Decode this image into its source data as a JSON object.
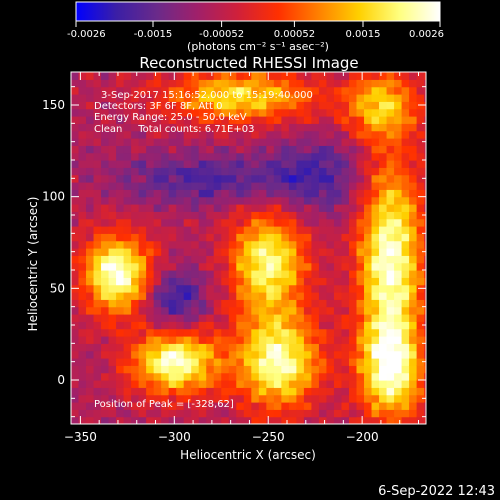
{
  "colorbar": {
    "ticks": [
      "-0.0026",
      "-0.0015",
      "-0.00052",
      "0.00052",
      "0.0015",
      "0.0026"
    ],
    "tick_values": [
      -0.0026,
      -0.0015,
      -0.00052,
      0.00052,
      0.0015,
      0.0026
    ],
    "range": [
      -0.0026,
      0.0026
    ],
    "units_label": "(photons cm⁻² s⁻¹ asec⁻²)",
    "colormap": [
      "#0000ff",
      "#3b1fa6",
      "#6a2a8a",
      "#a0206a",
      "#d0203a",
      "#ff3000",
      "#ff8000",
      "#ffd000",
      "#ffff80",
      "#ffffff"
    ]
  },
  "chart_data": {
    "type": "heatmap",
    "title": "Reconstructed RHESSI Image",
    "xlabel": "Heliocentric X (arcsec)",
    "ylabel": "Heliocentric Y (arcsec)",
    "xlim": [
      -355,
      -166
    ],
    "ylim": [
      -24,
      168
    ],
    "xticks": [
      -350,
      -300,
      -250,
      -200
    ],
    "xtick_labels": [
      "−350",
      "−300",
      "−250",
      "−200"
    ],
    "yticks": [
      0,
      50,
      100,
      150
    ],
    "ytick_labels": [
      "0",
      "50",
      "100",
      "150"
    ],
    "annotations": [
      "3-Sep-2017 15:16:52.000 to 15:19:40.000",
      "Detectors: 3F 6F 8F, Att 0",
      "Energy Range: 25.0 - 50.0 keV",
      "Clean     Total counts: 6.71E+03"
    ],
    "peak_label": "Position of Peak = [-328,62]",
    "peak": [
      -328,
      62
    ],
    "sources": [
      {
        "x": -330,
        "y": 58,
        "amp": 1.0,
        "sx": 13,
        "sy": 15
      },
      {
        "x": -300,
        "y": 10,
        "amp": 0.95,
        "sx": 16,
        "sy": 12
      },
      {
        "x": -250,
        "y": 65,
        "amp": 0.85,
        "sx": 14,
        "sy": 20
      },
      {
        "x": -245,
        "y": 10,
        "amp": 0.9,
        "sx": 16,
        "sy": 18
      },
      {
        "x": -185,
        "y": 65,
        "amp": 0.95,
        "sx": 12,
        "sy": 40
      },
      {
        "x": -265,
        "y": 155,
        "amp": 0.7,
        "sx": 28,
        "sy": 10
      },
      {
        "x": -190,
        "y": 150,
        "amp": 0.6,
        "sx": 14,
        "sy": 12
      },
      {
        "x": -185,
        "y": 5,
        "amp": 0.75,
        "sx": 12,
        "sy": 18
      }
    ],
    "negative_regions": [
      {
        "x": -300,
        "y": 45,
        "amp": 0.6,
        "sx": 12,
        "sy": 12
      },
      {
        "x": -285,
        "y": 110,
        "amp": 0.5,
        "sx": 30,
        "sy": 10
      },
      {
        "x": -225,
        "y": 110,
        "amp": 0.5,
        "sx": 20,
        "sy": 15
      }
    ]
  },
  "footer": {
    "date": "6-Sep-2022 12:43"
  }
}
